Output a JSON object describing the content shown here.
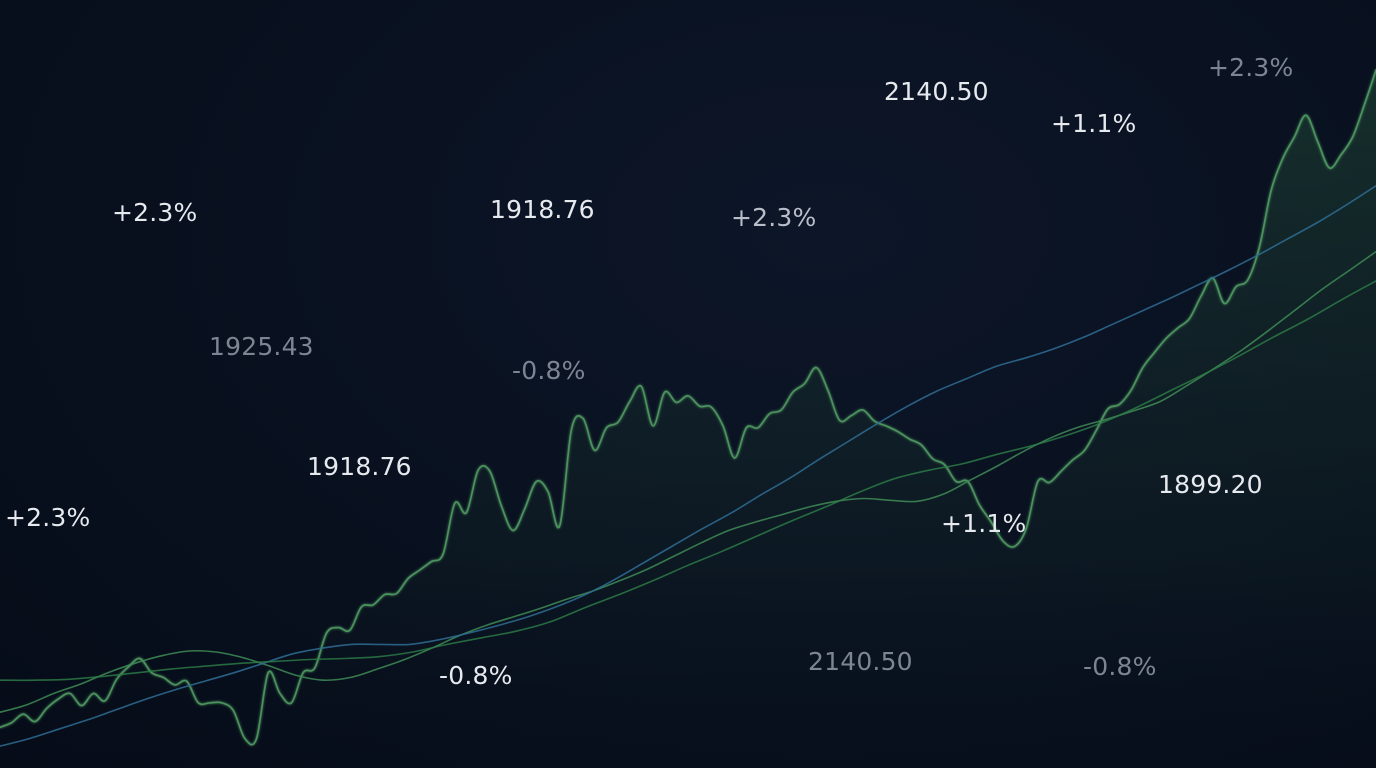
{
  "chart_data": {
    "type": "line",
    "title": "",
    "xlabel": "",
    "ylabel": "",
    "grid": false,
    "legend": "none",
    "series": [
      {
        "role": "price",
        "color": "#4f9a62",
        "fill": true,
        "values": [
          22,
          27,
          36,
          28,
          42,
          52,
          58,
          45,
          58,
          50,
          73,
          86,
          95,
          80,
          75,
          67,
          71,
          48,
          48,
          48,
          40,
          10,
          10,
          80,
          58,
          48,
          80,
          85,
          122,
          128,
          125,
          150,
          152,
          163,
          164,
          180,
          189,
          198,
          206,
          260,
          250,
          295,
          294,
          257,
          231,
          254,
          283,
          272,
          236,
          338,
          350,
          316,
          340,
          346,
          368,
          384,
          342,
          378,
          367,
          374,
          363,
          362,
          342,
          308,
          340,
          340,
          355,
          359,
          378,
          387,
          404,
          380,
          348,
          353,
          359,
          347,
          342,
          336,
          328,
          322,
          307,
          301,
          283,
          283,
          258,
          240,
          220,
          214,
          233,
          283,
          282,
          294,
          306,
          316,
          337,
          360,
          365,
          380,
          404,
          420,
          435,
          446,
          456,
          480,
          499,
          472,
          490,
          497,
          532,
          592,
          626,
          649,
          672,
          644,
          616,
          630,
          649,
          683,
          720
        ]
      },
      {
        "role": "moving-average-fast",
        "color": "#3f8c56",
        "fill": false,
        "values": [
          38,
          46,
          58,
          68,
          80,
          90,
          98,
          103,
          102,
          96,
          87,
          77,
          72,
          75,
          84,
          94,
          106,
          119,
          130,
          139,
          148,
          158,
          167,
          178,
          190,
          204,
          218,
          231,
          240,
          248,
          256,
          262,
          265,
          263,
          262,
          270,
          285,
          300,
          316,
          330,
          341,
          349,
          358,
          368,
          385,
          403,
          422,
          443,
          465,
          487,
          507,
          527
        ]
      },
      {
        "role": "moving-average-slow",
        "color": "#2f6d94",
        "fill": false,
        "values": [
          2,
          10,
          20,
          30,
          41,
          52,
          62,
          71,
          80,
          90,
          100,
          106,
          110,
          110,
          110,
          115,
          122,
          130,
          139,
          150,
          163,
          179,
          197,
          215,
          233,
          250,
          269,
          287,
          307,
          326,
          345,
          363,
          379,
          392,
          405,
          414,
          424,
          436,
          450,
          464,
          478,
          493,
          508,
          524,
          541,
          558,
          577,
          597
        ]
      },
      {
        "role": "trend",
        "color": "#2e8048",
        "fill": false,
        "values": [
          72,
          72,
          73,
          76,
          80,
          84,
          87,
          90,
          92,
          94,
          95,
          97,
          102,
          110,
          117,
          124,
          134,
          149,
          163,
          178,
          194,
          209,
          225,
          241,
          256,
          272,
          286,
          295,
          302,
          312,
          321,
          332,
          345,
          361,
          379,
          397,
          416,
          436,
          455,
          476,
          496
        ]
      }
    ],
    "annotations": [
      {
        "text": "+2.3%",
        "tone": "bright"
      },
      {
        "text": "1918.76",
        "tone": "bright"
      },
      {
        "text": "+2.3%",
        "tone": "mid"
      },
      {
        "text": "2140.50",
        "tone": "bright"
      },
      {
        "text": "+1.1%",
        "tone": "bright"
      },
      {
        "text": "+2.3%",
        "tone": "dim"
      },
      {
        "text": "1925.43",
        "tone": "dim"
      },
      {
        "text": "-0.8%",
        "tone": "dim"
      },
      {
        "text": "1918.76",
        "tone": "bright"
      },
      {
        "text": "+2.3%",
        "tone": "bright"
      },
      {
        "text": "1899.20",
        "tone": "bright"
      },
      {
        "text": "+1.1%",
        "tone": "bright"
      },
      {
        "text": "-0.8%",
        "tone": "bright"
      },
      {
        "text": "2140.50",
        "tone": "dim"
      },
      {
        "text": "-0.8%",
        "tone": "dim"
      }
    ]
  },
  "colors": {
    "background": "#0a1120",
    "text_bright": "#e6e9ee",
    "text_mid": "#b9bec8",
    "text_dim": "#7d8593",
    "area_fill": "#2f6a43"
  }
}
